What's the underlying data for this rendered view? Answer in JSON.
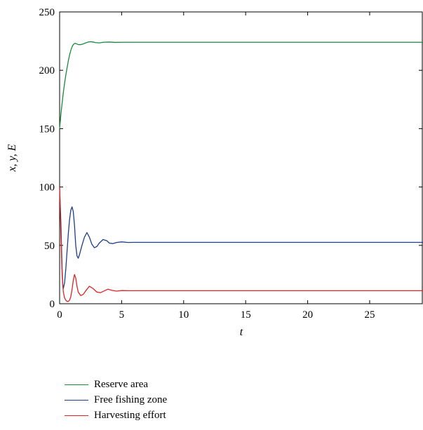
{
  "chart_data": {
    "type": "line",
    "title": "",
    "xlabel": "t",
    "ylabel": "x, y, E",
    "xlim": [
      0,
      29.3
    ],
    "ylim": [
      0,
      250
    ],
    "xticks": [
      0,
      5,
      10,
      15,
      20,
      25
    ],
    "yticks": [
      0,
      50,
      100,
      150,
      200,
      250
    ],
    "grid": false,
    "legend_position": "bottom-left",
    "series": [
      {
        "name": "Reserve area",
        "color": "#1a8a3c",
        "points": [
          [
            0,
            150
          ],
          [
            0.1,
            162
          ],
          [
            0.2,
            172
          ],
          [
            0.3,
            181
          ],
          [
            0.4,
            189
          ],
          [
            0.5,
            196
          ],
          [
            0.6,
            202
          ],
          [
            0.7,
            208
          ],
          [
            0.8,
            213
          ],
          [
            0.9,
            217
          ],
          [
            1.0,
            220
          ],
          [
            1.1,
            222
          ],
          [
            1.2,
            223
          ],
          [
            1.3,
            223
          ],
          [
            1.5,
            222
          ],
          [
            1.7,
            222
          ],
          [
            1.9,
            222.6
          ],
          [
            2.1,
            223.5
          ],
          [
            2.3,
            224.2
          ],
          [
            2.5,
            224.5
          ],
          [
            2.7,
            224.2
          ],
          [
            2.9,
            223.7
          ],
          [
            3.2,
            223.5
          ],
          [
            3.6,
            224.1
          ],
          [
            4.0,
            224.2
          ],
          [
            4.5,
            223.9
          ],
          [
            5.0,
            224
          ],
          [
            6,
            224
          ],
          [
            10,
            224
          ],
          [
            15,
            224
          ],
          [
            20,
            224
          ],
          [
            25,
            224
          ],
          [
            29.3,
            224
          ]
        ]
      },
      {
        "name": "Free fishing zone",
        "color": "#1f3d8c",
        "points": [
          [
            0,
            100
          ],
          [
            0.1,
            70
          ],
          [
            0.2,
            30
          ],
          [
            0.25,
            16
          ],
          [
            0.3,
            13
          ],
          [
            0.4,
            18
          ],
          [
            0.5,
            30
          ],
          [
            0.6,
            45
          ],
          [
            0.7,
            60
          ],
          [
            0.8,
            72
          ],
          [
            0.9,
            80
          ],
          [
            1.0,
            83
          ],
          [
            1.1,
            79
          ],
          [
            1.2,
            67
          ],
          [
            1.3,
            50
          ],
          [
            1.4,
            41
          ],
          [
            1.5,
            39
          ],
          [
            1.6,
            42
          ],
          [
            1.8,
            50
          ],
          [
            2.0,
            57
          ],
          [
            2.2,
            61
          ],
          [
            2.4,
            57
          ],
          [
            2.6,
            51
          ],
          [
            2.8,
            48
          ],
          [
            3.0,
            49
          ],
          [
            3.2,
            52
          ],
          [
            3.5,
            55
          ],
          [
            3.8,
            54
          ],
          [
            4.0,
            52
          ],
          [
            4.3,
            51.5
          ],
          [
            4.6,
            52.5
          ],
          [
            5.0,
            53
          ],
          [
            5.5,
            52.5
          ],
          [
            6,
            52.6
          ],
          [
            10,
            52.6
          ],
          [
            15,
            52.6
          ],
          [
            20,
            52.6
          ],
          [
            25,
            52.6
          ],
          [
            29.3,
            52.6
          ]
        ]
      },
      {
        "name": "Harvesting effort",
        "color": "#e02424",
        "points": [
          [
            0,
            100
          ],
          [
            0.1,
            60
          ],
          [
            0.2,
            25
          ],
          [
            0.3,
            10
          ],
          [
            0.4,
            5
          ],
          [
            0.5,
            3
          ],
          [
            0.6,
            2
          ],
          [
            0.7,
            2
          ],
          [
            0.8,
            3
          ],
          [
            0.9,
            6
          ],
          [
            1.0,
            12
          ],
          [
            1.1,
            20
          ],
          [
            1.2,
            25
          ],
          [
            1.3,
            22
          ],
          [
            1.4,
            15
          ],
          [
            1.5,
            10
          ],
          [
            1.7,
            7
          ],
          [
            1.9,
            8
          ],
          [
            2.1,
            11
          ],
          [
            2.4,
            15
          ],
          [
            2.7,
            13
          ],
          [
            3.0,
            10
          ],
          [
            3.3,
            9.5
          ],
          [
            3.6,
            11
          ],
          [
            3.9,
            12.5
          ],
          [
            4.2,
            11.5
          ],
          [
            4.6,
            10.8
          ],
          [
            5.0,
            11.3
          ],
          [
            5.5,
            11.2
          ],
          [
            6,
            11.2
          ],
          [
            10,
            11.2
          ],
          [
            15,
            11.2
          ],
          [
            20,
            11.2
          ],
          [
            25,
            11.2
          ],
          [
            29.3,
            11.2
          ]
        ]
      }
    ]
  }
}
